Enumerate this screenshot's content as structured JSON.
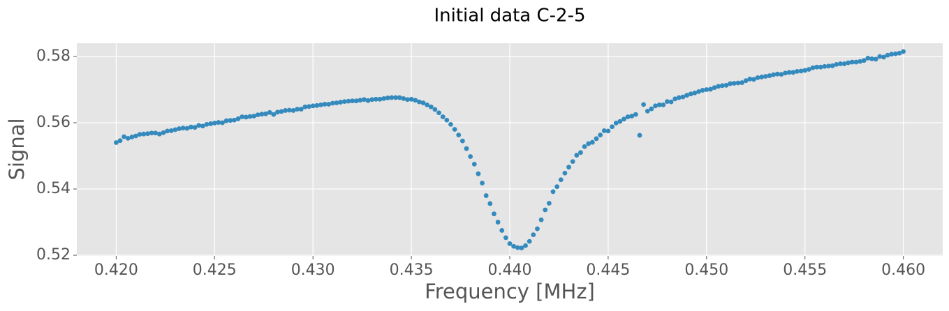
{
  "chart_data": {
    "type": "scatter",
    "title": "Initial data C-2-5",
    "xlabel": "Frequency [MHz]",
    "ylabel": "Signal",
    "color": "#348abd",
    "grid": true,
    "xlim": [
      0.418,
      0.462
    ],
    "ylim": [
      0.5198,
      0.584
    ],
    "xticks": [
      {
        "value": 0.42,
        "label": "0.420"
      },
      0.425,
      {
        "value": 0.43,
        "label": "0.430"
      },
      0.435,
      {
        "value": 0.44,
        "label": "0.440"
      },
      0.445,
      {
        "value": 0.45,
        "label": "0.450"
      },
      0.455,
      {
        "value": 0.46,
        "label": "0.460"
      }
    ],
    "yticks": [
      0.52,
      0.54,
      0.56,
      0.58
    ],
    "x": [
      0.42,
      0.4202,
      0.4204,
      0.4206,
      0.4208,
      0.421,
      0.4212,
      0.4214,
      0.4216,
      0.4218,
      0.422,
      0.4222,
      0.4224,
      0.4226,
      0.4228,
      0.423,
      0.4232,
      0.4234,
      0.4236,
      0.4238,
      0.424,
      0.4242,
      0.4244,
      0.4246,
      0.4248,
      0.425,
      0.4252,
      0.4254,
      0.4256,
      0.4258,
      0.426,
      0.4262,
      0.4264,
      0.4266,
      0.4268,
      0.427,
      0.4272,
      0.4274,
      0.4276,
      0.4278,
      0.428,
      0.4282,
      0.4284,
      0.4286,
      0.4288,
      0.429,
      0.4292,
      0.4294,
      0.4296,
      0.4298,
      0.43,
      0.4302,
      0.4304,
      0.4306,
      0.4308,
      0.431,
      0.4312,
      0.4314,
      0.4316,
      0.4318,
      0.432,
      0.4322,
      0.4324,
      0.4326,
      0.4328,
      0.433,
      0.4332,
      0.4334,
      0.4336,
      0.4338,
      0.434,
      0.4342,
      0.4344,
      0.4346,
      0.4348,
      0.435,
      0.4352,
      0.4354,
      0.4356,
      0.4358,
      0.436,
      0.4362,
      0.4364,
      0.4366,
      0.4368,
      0.437,
      0.4372,
      0.4374,
      0.4376,
      0.4378,
      0.438,
      0.4382,
      0.4384,
      0.4386,
      0.4388,
      0.439,
      0.4392,
      0.4394,
      0.4396,
      0.4398,
      0.44,
      0.4402,
      0.4404,
      0.4406,
      0.4408,
      0.441,
      0.4412,
      0.4414,
      0.4416,
      0.4418,
      0.442,
      0.4422,
      0.4424,
      0.4426,
      0.4428,
      0.443,
      0.4432,
      0.4434,
      0.4436,
      0.4438,
      0.444,
      0.4442,
      0.4444,
      0.4446,
      0.4448,
      0.445,
      0.4452,
      0.4454,
      0.4456,
      0.4458,
      0.446,
      0.4462,
      0.4464,
      0.4466,
      0.4468,
      0.447,
      0.4472,
      0.4474,
      0.4476,
      0.4478,
      0.448,
      0.4482,
      0.4484,
      0.4486,
      0.4488,
      0.449,
      0.4492,
      0.4494,
      0.4496,
      0.4498,
      0.45,
      0.4502,
      0.4504,
      0.4506,
      0.4508,
      0.451,
      0.4512,
      0.4514,
      0.4516,
      0.4518,
      0.452,
      0.4522,
      0.4524,
      0.4526,
      0.4528,
      0.453,
      0.4532,
      0.4534,
      0.4536,
      0.4538,
      0.454,
      0.4542,
      0.4544,
      0.4546,
      0.4548,
      0.455,
      0.4552,
      0.4554,
      0.4556,
      0.4558,
      0.456,
      0.4562,
      0.4564,
      0.4566,
      0.4568,
      0.457,
      0.4572,
      0.4574,
      0.4576,
      0.4578,
      0.458,
      0.4582,
      0.4584,
      0.4586,
      0.4588,
      0.459,
      0.4592,
      0.4594,
      0.4596,
      0.4598,
      0.46
    ],
    "values": [
      0.554,
      0.5546,
      0.5558,
      0.5553,
      0.5557,
      0.556,
      0.5565,
      0.5566,
      0.5567,
      0.5569,
      0.5569,
      0.5566,
      0.557,
      0.5575,
      0.5576,
      0.5579,
      0.5582,
      0.5584,
      0.5583,
      0.5587,
      0.5586,
      0.5592,
      0.559,
      0.5595,
      0.5597,
      0.5599,
      0.5601,
      0.56,
      0.5606,
      0.5607,
      0.5608,
      0.5612,
      0.5618,
      0.5617,
      0.5619,
      0.562,
      0.5624,
      0.5626,
      0.5627,
      0.5631,
      0.5625,
      0.5632,
      0.5634,
      0.5637,
      0.5638,
      0.5637,
      0.5641,
      0.5641,
      0.5648,
      0.5649,
      0.5651,
      0.5652,
      0.5654,
      0.5656,
      0.5656,
      0.5659,
      0.566,
      0.5662,
      0.5664,
      0.5665,
      0.5666,
      0.5666,
      0.5668,
      0.567,
      0.5667,
      0.567,
      0.5671,
      0.5671,
      0.5673,
      0.5675,
      0.5676,
      0.5676,
      0.5676,
      0.5673,
      0.567,
      0.5671,
      0.5668,
      0.5663,
      0.566,
      0.5654,
      0.5648,
      0.564,
      0.563,
      0.5618,
      0.5608,
      0.5595,
      0.558,
      0.5563,
      0.5545,
      0.5522,
      0.5498,
      0.5475,
      0.5446,
      0.5418,
      0.538,
      0.5356,
      0.5325,
      0.53,
      0.5275,
      0.5253,
      0.5235,
      0.5227,
      0.5223,
      0.5222,
      0.5229,
      0.5242,
      0.5262,
      0.528,
      0.5307,
      0.5337,
      0.5357,
      0.5392,
      0.5407,
      0.5428,
      0.5448,
      0.5466,
      0.5483,
      0.5502,
      0.551,
      0.5528,
      0.5537,
      0.5541,
      0.5552,
      0.5563,
      0.5576,
      0.5575,
      0.5588,
      0.5599,
      0.5604,
      0.5611,
      0.5618,
      0.562,
      0.5625,
      0.5562,
      0.5655,
      0.5635,
      0.5642,
      0.5651,
      0.5654,
      0.5654,
      0.5664,
      0.5663,
      0.5672,
      0.5676,
      0.5678,
      0.5683,
      0.5687,
      0.569,
      0.5694,
      0.5698,
      0.57,
      0.5701,
      0.5706,
      0.571,
      0.5712,
      0.5713,
      0.5718,
      0.5719,
      0.572,
      0.5721,
      0.5727,
      0.5732,
      0.5731,
      0.5736,
      0.5738,
      0.574,
      0.5742,
      0.5745,
      0.5747,
      0.5746,
      0.575,
      0.5752,
      0.5752,
      0.5755,
      0.5756,
      0.5758,
      0.5761,
      0.5766,
      0.5768,
      0.5768,
      0.577,
      0.5771,
      0.5772,
      0.5776,
      0.5778,
      0.5778,
      0.5781,
      0.5783,
      0.5783,
      0.5785,
      0.5788,
      0.5795,
      0.5793,
      0.5792,
      0.58,
      0.5798,
      0.5804,
      0.5807,
      0.5808,
      0.581,
      0.5815
    ]
  }
}
